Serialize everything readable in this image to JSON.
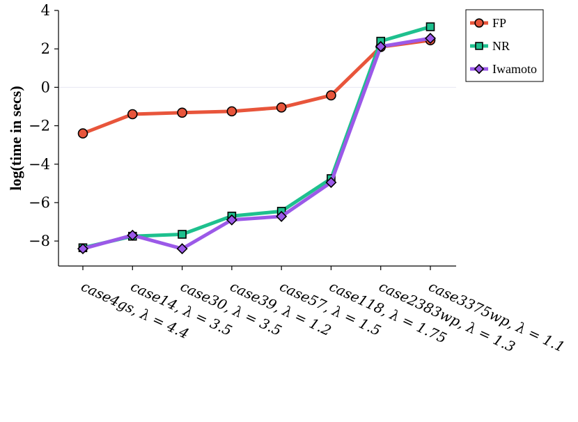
{
  "chart_data": {
    "type": "line",
    "title": "",
    "xlabel": "",
    "ylabel": "log(time in secs)",
    "ylim": [
      -9.3,
      4
    ],
    "yticks": [
      4,
      2,
      0,
      -2,
      -4,
      -6,
      -8
    ],
    "ytick_labels": [
      "4",
      "2",
      "0",
      "−2",
      "−4",
      "−6",
      "−8"
    ],
    "categories": [
      "case4gs, λ = 4.4",
      "case14, λ = 3.5",
      "case30, λ = 3.5",
      "case39, λ = 1.2",
      "case57, λ = 1.5",
      "case118, λ = 1.75",
      "case2383wp, λ = 1.3",
      "case3375wp, λ = 1.1"
    ],
    "grid": false,
    "zero_line": true,
    "legend_position": "top-right",
    "series": [
      {
        "name": "FP",
        "color": "#e8553b",
        "marker": "circle",
        "values": [
          -2.4,
          -1.4,
          -1.32,
          -1.25,
          -1.05,
          -0.42,
          2.1,
          2.45
        ]
      },
      {
        "name": "NR",
        "color": "#1ec08e",
        "marker": "square",
        "values": [
          -8.35,
          -7.75,
          -7.65,
          -6.7,
          -6.45,
          -4.75,
          2.4,
          3.15
        ]
      },
      {
        "name": "Iwamoto",
        "color": "#9b59e8",
        "marker": "diamond",
        "values": [
          -8.4,
          -7.7,
          -8.4,
          -6.9,
          -6.72,
          -4.95,
          2.12,
          2.55
        ]
      }
    ]
  }
}
